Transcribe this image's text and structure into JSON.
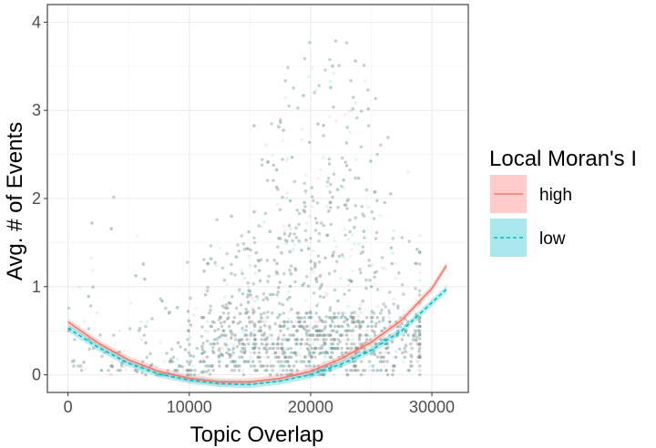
{
  "chart_data": {
    "type": "scatter",
    "xlabel": "Topic Overlap",
    "ylabel": "Avg. # of Events",
    "xlim": [
      -1700,
      33000
    ],
    "ylim": [
      -0.2,
      4.2
    ],
    "x_ticks": [
      0,
      10000,
      20000,
      30000
    ],
    "x_tick_labels": [
      "0",
      "10000",
      "20000",
      "30000"
    ],
    "y_ticks": [
      0,
      1,
      2,
      3,
      4
    ],
    "y_tick_labels": [
      "0",
      "1",
      "2",
      "3",
      "4"
    ],
    "grid": true,
    "legend": {
      "title": "Local Moran's I",
      "position": "right",
      "entries": [
        {
          "label": "high",
          "color": "#F8766D",
          "fill": "#FFCCCB",
          "dash": "solid"
        },
        {
          "label": "low",
          "color": "#00BFC4",
          "fill": "#A8E8EA",
          "dash": "dashed"
        }
      ]
    },
    "series": [
      {
        "name": "high",
        "color": "#F8766D",
        "fit": {
          "x": [
            0,
            2500,
            5000,
            7500,
            10000,
            12500,
            15000,
            17500,
            20000,
            22500,
            25000,
            27500,
            30000,
            31200
          ],
          "y": [
            0.6,
            0.36,
            0.17,
            0.04,
            -0.04,
            -0.08,
            -0.08,
            -0.04,
            0.04,
            0.18,
            0.37,
            0.62,
            0.98,
            1.24
          ]
        },
        "points_description": "dense scatter, x 0–29000, y 0–3.7"
      },
      {
        "name": "low",
        "color": "#00BFC4",
        "fit": {
          "x": [
            0,
            2500,
            5000,
            7500,
            10000,
            12500,
            15000,
            17500,
            20000,
            22500,
            25000,
            27500,
            30000,
            31200
          ],
          "y": [
            0.53,
            0.31,
            0.13,
            0.01,
            -0.06,
            -0.1,
            -0.11,
            -0.07,
            0.0,
            0.12,
            0.28,
            0.5,
            0.82,
            0.97
          ]
        },
        "points_description": "dense scatter, x 0–29000, y 0–3.8"
      }
    ]
  }
}
